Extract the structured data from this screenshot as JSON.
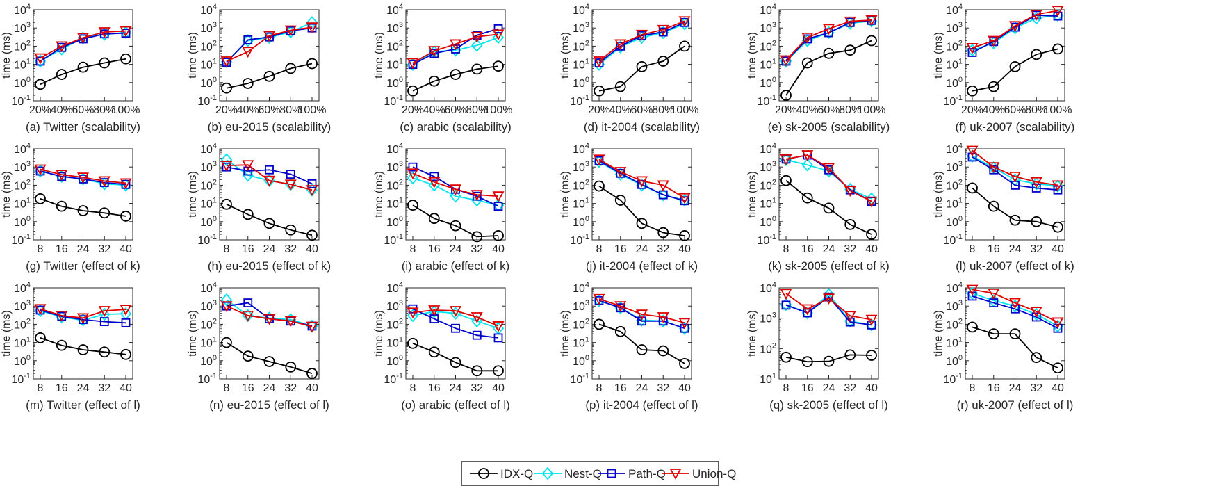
{
  "series_styles": [
    {
      "name": "IDX-Q",
      "color": "#000000",
      "marker": "circle"
    },
    {
      "name": "Nest-Q",
      "color": "#00e5ee",
      "marker": "diamond"
    },
    {
      "name": "Path-Q",
      "color": "#0000cc",
      "marker": "square"
    },
    {
      "name": "Union-Q",
      "color": "#e00000",
      "marker": "triangle-down"
    }
  ],
  "legend": {
    "position": "bottom-center",
    "entries": [
      "IDX-Q",
      "Nest-Q",
      "Path-Q",
      "Union-Q"
    ]
  },
  "chart_data": [
    {
      "id": "a",
      "type": "line",
      "title": "(a) Twitter (scalability)",
      "ylabel": "time (ms)",
      "yscale": "log",
      "ylim": [
        0.1,
        10000
      ],
      "categories": [
        "20%",
        "40%",
        "60%",
        "80%",
        "100%"
      ],
      "series": [
        {
          "name": "IDX-Q",
          "values": [
            0.8,
            2.8,
            7,
            12,
            20
          ]
        },
        {
          "name": "Nest-Q",
          "values": [
            15,
            70,
            280,
            450,
            560
          ]
        },
        {
          "name": "Path-Q",
          "values": [
            15,
            85,
            250,
            470,
            520
          ]
        },
        {
          "name": "Union-Q",
          "values": [
            22,
            100,
            290,
            600,
            680
          ]
        }
      ]
    },
    {
      "id": "b",
      "type": "line",
      "title": "(b) eu-2015 (scalability)",
      "ylabel": "time (ms)",
      "yscale": "log",
      "ylim": [
        0.1,
        10000
      ],
      "categories": [
        "20%",
        "40%",
        "60%",
        "80%",
        "100%"
      ],
      "series": [
        {
          "name": "IDX-Q",
          "values": [
            0.5,
            0.9,
            2.2,
            6,
            11
          ]
        },
        {
          "name": "Nest-Q",
          "values": [
            14,
            200,
            300,
            600,
            2000
          ]
        },
        {
          "name": "Path-Q",
          "values": [
            13,
            220,
            320,
            700,
            1000
          ]
        },
        {
          "name": "Union-Q",
          "values": [
            15,
            50,
            370,
            750,
            1100
          ]
        }
      ]
    },
    {
      "id": "c",
      "type": "line",
      "title": "(c) arabic (scalability)",
      "ylabel": "time (ms)",
      "yscale": "log",
      "ylim": [
        0.1,
        10000
      ],
      "categories": [
        "20%",
        "40%",
        "60%",
        "80%",
        "100%"
      ],
      "series": [
        {
          "name": "IDX-Q",
          "values": [
            0.35,
            1.2,
            2.8,
            5.5,
            8
          ]
        },
        {
          "name": "Nest-Q",
          "values": [
            10,
            50,
            60,
            110,
            300
          ]
        },
        {
          "name": "Path-Q",
          "values": [
            10,
            40,
            70,
            400,
            900
          ]
        },
        {
          "name": "Union-Q",
          "values": [
            12,
            55,
            130,
            330,
            450
          ]
        }
      ]
    },
    {
      "id": "d",
      "type": "line",
      "title": "(d) it-2004 (scalability)",
      "ylabel": "time (ms)",
      "yscale": "log",
      "ylim": [
        0.1,
        10000
      ],
      "categories": [
        "20%",
        "40%",
        "60%",
        "80%",
        "100%"
      ],
      "series": [
        {
          "name": "IDX-Q",
          "values": [
            0.35,
            0.6,
            7.5,
            15,
            100
          ]
        },
        {
          "name": "Nest-Q",
          "values": [
            10,
            90,
            300,
            550,
            1700
          ]
        },
        {
          "name": "Path-Q",
          "values": [
            12,
            100,
            380,
            600,
            2000
          ]
        },
        {
          "name": "Union-Q",
          "values": [
            15,
            130,
            430,
            800,
            2400
          ]
        }
      ]
    },
    {
      "id": "e",
      "type": "line",
      "title": "(e) sk-2005 (scalability)",
      "ylabel": "time (ms)",
      "yscale": "log",
      "ylim": [
        0.1,
        10000
      ],
      "categories": [
        "20%",
        "40%",
        "60%",
        "80%",
        "100%"
      ],
      "series": [
        {
          "name": "IDX-Q",
          "values": [
            0.2,
            12,
            40,
            60,
            200
          ]
        },
        {
          "name": "Nest-Q",
          "values": [
            15,
            200,
            550,
            1800,
            2400
          ]
        },
        {
          "name": "Path-Q",
          "values": [
            15,
            250,
            550,
            2000,
            2600
          ]
        },
        {
          "name": "Union-Q",
          "values": [
            17,
            300,
            900,
            2300,
            2700
          ]
        }
      ]
    },
    {
      "id": "f",
      "type": "line",
      "title": "(f) uk-2007 (scalability)",
      "ylabel": "time (ms)",
      "yscale": "log",
      "ylim": [
        0.1,
        10000
      ],
      "categories": [
        "20%",
        "40%",
        "60%",
        "80%",
        "100%"
      ],
      "series": [
        {
          "name": "IDX-Q",
          "values": [
            0.35,
            0.6,
            7.5,
            35,
            70
          ]
        },
        {
          "name": "Nest-Q",
          "values": [
            60,
            150,
            1000,
            3500,
            5000
          ]
        },
        {
          "name": "Path-Q",
          "values": [
            45,
            180,
            1100,
            5000,
            4500
          ]
        },
        {
          "name": "Union-Q",
          "values": [
            80,
            200,
            1300,
            5500,
            9000
          ]
        }
      ]
    },
    {
      "id": "g",
      "type": "line",
      "title": "(g) Twitter (effect of k)",
      "ylabel": "time (ms)",
      "yscale": "log",
      "ylim": [
        0.1,
        10000
      ],
      "categories": [
        "8",
        "16",
        "24",
        "32",
        "40"
      ],
      "series": [
        {
          "name": "IDX-Q",
          "values": [
            18,
            7,
            4,
            3,
            2
          ]
        },
        {
          "name": "Nest-Q",
          "values": [
            600,
            300,
            220,
            120,
            100
          ]
        },
        {
          "name": "Path-Q",
          "values": [
            600,
            300,
            220,
            140,
            110
          ]
        },
        {
          "name": "Union-Q",
          "values": [
            750,
            380,
            270,
            170,
            130
          ]
        }
      ]
    },
    {
      "id": "h",
      "type": "line",
      "title": "(h) eu-2015 (effect of k)",
      "ylabel": "time (ms)",
      "yscale": "log",
      "ylim": [
        0.1,
        10000
      ],
      "categories": [
        "8",
        "16",
        "24",
        "32",
        "40"
      ],
      "series": [
        {
          "name": "IDX-Q",
          "values": [
            9,
            2.5,
            0.8,
            0.35,
            0.18
          ]
        },
        {
          "name": "Nest-Q",
          "values": [
            2500,
            350,
            180,
            110,
            55
          ]
        },
        {
          "name": "Path-Q",
          "values": [
            1000,
            600,
            700,
            400,
            120
          ]
        },
        {
          "name": "Union-Q",
          "values": [
            1200,
            1300,
            180,
            110,
            55
          ]
        }
      ]
    },
    {
      "id": "i",
      "type": "line",
      "title": "(i) arabic (effect of k)",
      "ylabel": "time (ms)",
      "yscale": "log",
      "ylim": [
        0.1,
        10000
      ],
      "categories": [
        "8",
        "16",
        "24",
        "32",
        "40"
      ],
      "series": [
        {
          "name": "IDX-Q",
          "values": [
            8,
            1.5,
            0.6,
            0.15,
            0.17
          ]
        },
        {
          "name": "Nest-Q",
          "values": [
            250,
            100,
            25,
            15,
            8
          ]
        },
        {
          "name": "Path-Q",
          "values": [
            1000,
            300,
            60,
            25,
            7
          ]
        },
        {
          "name": "Union-Q",
          "values": [
            450,
            150,
            60,
            30,
            25
          ]
        }
      ]
    },
    {
      "id": "j",
      "type": "line",
      "title": "(j) it-2004 (effect of k)",
      "ylabel": "time (ms)",
      "yscale": "log",
      "ylim": [
        0.1,
        10000
      ],
      "categories": [
        "8",
        "16",
        "24",
        "32",
        "40"
      ],
      "series": [
        {
          "name": "IDX-Q",
          "values": [
            90,
            15,
            0.8,
            0.25,
            0.17
          ]
        },
        {
          "name": "Nest-Q",
          "values": [
            2000,
            400,
            100,
            30,
            15
          ]
        },
        {
          "name": "Path-Q",
          "values": [
            2200,
            450,
            110,
            30,
            14
          ]
        },
        {
          "name": "Union-Q",
          "values": [
            2600,
            550,
            170,
            100,
            20
          ]
        }
      ]
    },
    {
      "id": "k",
      "type": "line",
      "title": "(k) sk-2005 (effect of k)",
      "ylabel": "time (ms)",
      "yscale": "log",
      "ylim": [
        0.1,
        10000
      ],
      "categories": [
        "8",
        "16",
        "24",
        "32",
        "40"
      ],
      "series": [
        {
          "name": "IDX-Q",
          "values": [
            180,
            20,
            5.5,
            0.7,
            0.2
          ]
        },
        {
          "name": "Nest-Q",
          "values": [
            2500,
            1300,
            600,
            60,
            18
          ]
        },
        {
          "name": "Path-Q",
          "values": [
            2700,
            4500,
            700,
            55,
            13
          ]
        },
        {
          "name": "Union-Q",
          "values": [
            2700,
            4500,
            900,
            50,
            13
          ]
        }
      ]
    },
    {
      "id": "l",
      "type": "line",
      "title": "(l) uk-2007 (effect of k)",
      "ylabel": "time (ms)",
      "yscale": "log",
      "ylim": [
        0.1,
        10000
      ],
      "categories": [
        "8",
        "16",
        "24",
        "32",
        "40"
      ],
      "series": [
        {
          "name": "IDX-Q",
          "values": [
            70,
            7,
            1.2,
            1.0,
            0.5
          ]
        },
        {
          "name": "Nest-Q",
          "values": [
            4000,
            900,
            200,
            120,
            90
          ]
        },
        {
          "name": "Path-Q",
          "values": [
            3500,
            700,
            100,
            70,
            55
          ]
        },
        {
          "name": "Union-Q",
          "values": [
            8000,
            1000,
            300,
            150,
            100
          ]
        }
      ]
    },
    {
      "id": "m",
      "type": "line",
      "title": "(m) Twitter (effect of l)",
      "ylabel": "time (ms)",
      "yscale": "log",
      "ylim": [
        0.1,
        10000
      ],
      "categories": [
        "8",
        "16",
        "24",
        "32",
        "40"
      ],
      "series": [
        {
          "name": "IDX-Q",
          "values": [
            18,
            7,
            4,
            3,
            2.2
          ]
        },
        {
          "name": "Nest-Q",
          "values": [
            550,
            250,
            170,
            350,
            380
          ]
        },
        {
          "name": "Path-Q",
          "values": [
            600,
            270,
            180,
            140,
            120
          ]
        },
        {
          "name": "Union-Q",
          "values": [
            700,
            300,
            220,
            550,
            650
          ]
        }
      ]
    },
    {
      "id": "n",
      "type": "line",
      "title": "(n) eu-2015 (effect of l)",
      "ylabel": "time (ms)",
      "yscale": "log",
      "ylim": [
        0.1,
        10000
      ],
      "categories": [
        "8",
        "16",
        "24",
        "32",
        "40"
      ],
      "series": [
        {
          "name": "IDX-Q",
          "values": [
            10,
            1.8,
            0.9,
            0.45,
            0.2
          ]
        },
        {
          "name": "Nest-Q",
          "values": [
            2200,
            300,
            220,
            180,
            80
          ]
        },
        {
          "name": "Path-Q",
          "values": [
            1000,
            1500,
            200,
            150,
            80
          ]
        },
        {
          "name": "Union-Q",
          "values": [
            1000,
            300,
            200,
            150,
            75
          ]
        }
      ]
    },
    {
      "id": "o",
      "type": "line",
      "title": "(o) arabic (effect of l)",
      "ylabel": "time (ms)",
      "yscale": "log",
      "ylim": [
        0.1,
        10000
      ],
      "categories": [
        "8",
        "16",
        "24",
        "32",
        "40"
      ],
      "series": [
        {
          "name": "IDX-Q",
          "values": [
            9,
            3,
            0.8,
            0.28,
            0.28
          ]
        },
        {
          "name": "Nest-Q",
          "values": [
            300,
            500,
            400,
            150,
            60
          ]
        },
        {
          "name": "Path-Q",
          "values": [
            700,
            200,
            60,
            25,
            18
          ]
        },
        {
          "name": "Union-Q",
          "values": [
            450,
            600,
            550,
            250,
            80
          ]
        }
      ]
    },
    {
      "id": "p",
      "type": "line",
      "title": "(p) it-2004 (effect of l)",
      "ylabel": "time (ms)",
      "yscale": "log",
      "ylim": [
        0.1,
        10000
      ],
      "categories": [
        "8",
        "16",
        "24",
        "32",
        "40"
      ],
      "series": [
        {
          "name": "IDX-Q",
          "values": [
            100,
            40,
            4,
            3.5,
            0.7
          ]
        },
        {
          "name": "Nest-Q",
          "values": [
            2000,
            800,
            170,
            150,
            60
          ]
        },
        {
          "name": "Path-Q",
          "values": [
            2000,
            800,
            150,
            150,
            60
          ]
        },
        {
          "name": "Union-Q",
          "values": [
            2500,
            1000,
            350,
            250,
            120
          ]
        }
      ]
    },
    {
      "id": "q",
      "type": "line",
      "title": "(q) sk-2005 (effect of l)",
      "ylabel": "time (ms)",
      "yscale": "log",
      "ylim": [
        10,
        10000
      ],
      "categories": [
        "8",
        "16",
        "24",
        "32",
        "40"
      ],
      "series": [
        {
          "name": "IDX-Q",
          "values": [
            52,
            37,
            38,
            62,
            60
          ]
        },
        {
          "name": "Nest-Q",
          "values": [
            2800,
            1500,
            6000,
            800,
            600
          ]
        },
        {
          "name": "Path-Q",
          "values": [
            2700,
            1500,
            5000,
            750,
            600
          ]
        },
        {
          "name": "Union-Q",
          "values": [
            6500,
            2000,
            4500,
            1200,
            900
          ]
        }
      ]
    },
    {
      "id": "r",
      "type": "line",
      "title": "(r) uk-2007 (effect of l)",
      "ylabel": "time (ms)",
      "yscale": "log",
      "ylim": [
        0.1,
        10000
      ],
      "categories": [
        "8",
        "16",
        "24",
        "32",
        "40"
      ],
      "series": [
        {
          "name": "IDX-Q",
          "values": [
            70,
            30,
            30,
            1.5,
            0.4
          ]
        },
        {
          "name": "Nest-Q",
          "values": [
            5000,
            2000,
            1000,
            350,
            80
          ]
        },
        {
          "name": "Path-Q",
          "values": [
            3500,
            1500,
            700,
            250,
            60
          ]
        },
        {
          "name": "Union-Q",
          "values": [
            8000,
            5000,
            1500,
            500,
            130
          ]
        }
      ]
    }
  ]
}
